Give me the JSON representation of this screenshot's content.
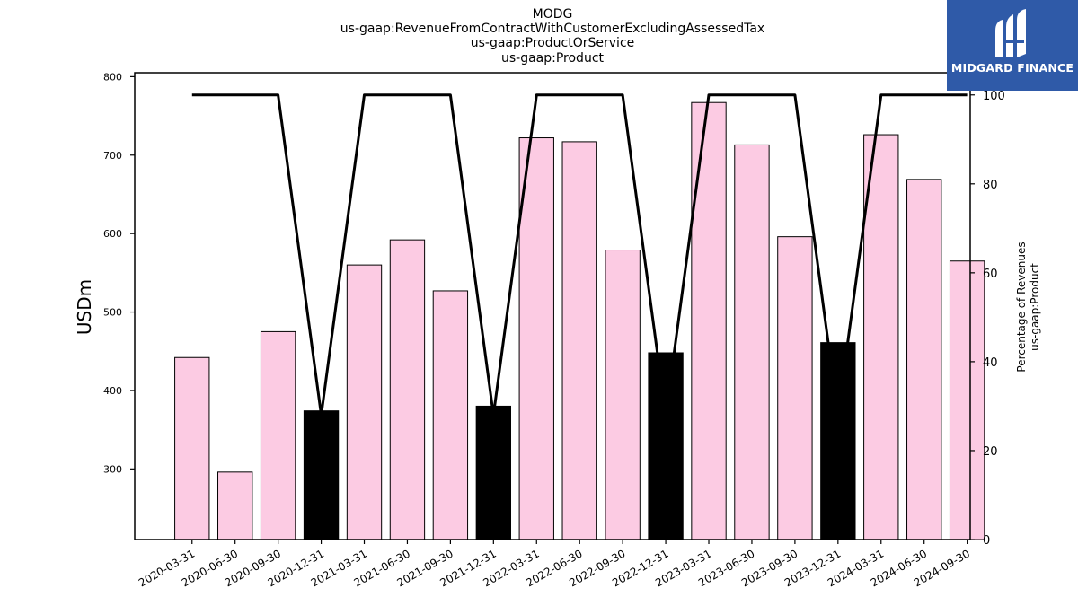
{
  "title_lines": [
    "MODG",
    "us-gaap:RevenueFromContractWithCustomerExcludingAssessedTax",
    "us-gaap:ProductOrService",
    "us-gaap:Product"
  ],
  "logo": {
    "text": "MIDGARD FINANCE",
    "color": "#2f5aa8"
  },
  "colors": {
    "bar_normal": "#fccbe3",
    "bar_highlight": "#000000",
    "line": "#000000"
  },
  "chart_data": {
    "type": "bar",
    "categories": [
      "2020-03-31",
      "2020-06-30",
      "2020-09-30",
      "2020-12-31",
      "2021-03-31",
      "2021-06-30",
      "2021-09-30",
      "2021-12-31",
      "2022-03-31",
      "2022-06-30",
      "2022-09-30",
      "2022-12-31",
      "2023-03-31",
      "2023-06-30",
      "2023-09-30",
      "2023-12-31",
      "2024-03-31",
      "2024-06-30",
      "2024-09-30"
    ],
    "values": [
      442,
      296,
      475,
      374,
      560,
      592,
      527,
      380,
      722,
      717,
      579,
      448,
      767,
      713,
      596,
      461,
      726,
      669,
      565
    ],
    "highlight": [
      false,
      false,
      false,
      true,
      false,
      false,
      false,
      true,
      false,
      false,
      false,
      true,
      false,
      false,
      false,
      true,
      false,
      false,
      false
    ],
    "ylabel": "USDm",
    "ylim": [
      210,
      805
    ],
    "yticks": [
      300,
      400,
      500,
      600,
      700,
      800
    ],
    "line_series": {
      "values": [
        100,
        100,
        100,
        28,
        100,
        100,
        100,
        28,
        100,
        100,
        100,
        28,
        100,
        100,
        100,
        28,
        100,
        100,
        100
      ],
      "ylabel_lines": [
        "Percentage of Revenues",
        "us-gaap:Product"
      ],
      "ylim": [
        0,
        105
      ],
      "yticks": [
        0,
        20,
        40,
        60,
        80,
        100
      ]
    }
  }
}
